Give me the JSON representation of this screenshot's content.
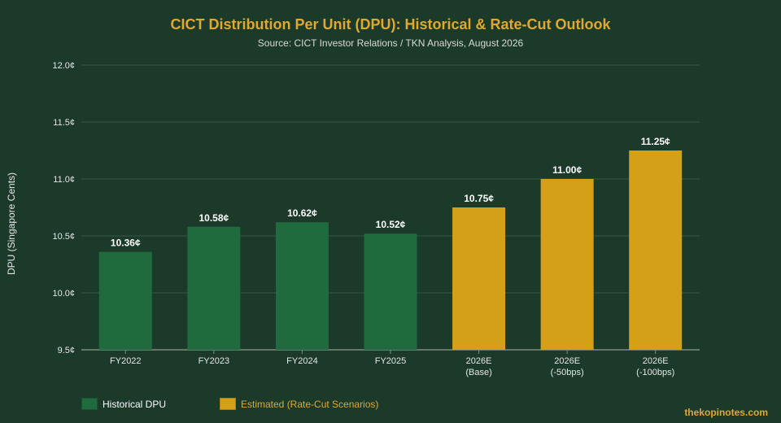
{
  "title": "CICT Distribution Per Unit (DPU): Historical & Rate-Cut Outlook",
  "subtitle": "Source: CICT Investor Relations / TKN Analysis, August 2026",
  "watermark": "thekopinotes.com",
  "colors": {
    "background": "#1b3a2a",
    "historical": "#1f6b3e",
    "estimated": "#d4a017",
    "title": "#e0a82e",
    "grid": "#3a5646",
    "axis_text": "#e6e6e6"
  },
  "legend": {
    "historical_label": "Historical DPU",
    "estimated_label": "Estimated (Rate-Cut Scenarios)"
  },
  "chart_data": {
    "type": "bar",
    "title": "CICT Distribution Per Unit (DPU): Historical & Rate-Cut Outlook",
    "subtitle": "Source: CICT Investor Relations / TKN Analysis, August 2026",
    "ylabel": "DPU (Singapore Cents)",
    "xlabel": "",
    "ylim": [
      9.5,
      12.0
    ],
    "yticks": [
      "9.5¢",
      "10.0¢",
      "10.5¢",
      "11.0¢",
      "11.5¢",
      "12.0¢"
    ],
    "grid": true,
    "legend_position": "bottom-left",
    "categories": [
      [
        "FY2022"
      ],
      [
        "FY2023"
      ],
      [
        "FY2024"
      ],
      [
        "FY2025"
      ],
      [
        "2026E",
        "(Base)"
      ],
      [
        "2026E",
        "(-50bps)"
      ],
      [
        "2026E",
        "(-100bps)"
      ]
    ],
    "values": [
      10.36,
      10.58,
      10.62,
      10.52,
      10.75,
      11.0,
      11.25
    ],
    "value_labels": [
      "10.36¢",
      "10.58¢",
      "10.62¢",
      "10.52¢",
      "10.75¢",
      "11.00¢",
      "11.25¢"
    ],
    "groups": [
      "historical",
      "historical",
      "historical",
      "historical",
      "estimated",
      "estimated",
      "estimated"
    ]
  }
}
